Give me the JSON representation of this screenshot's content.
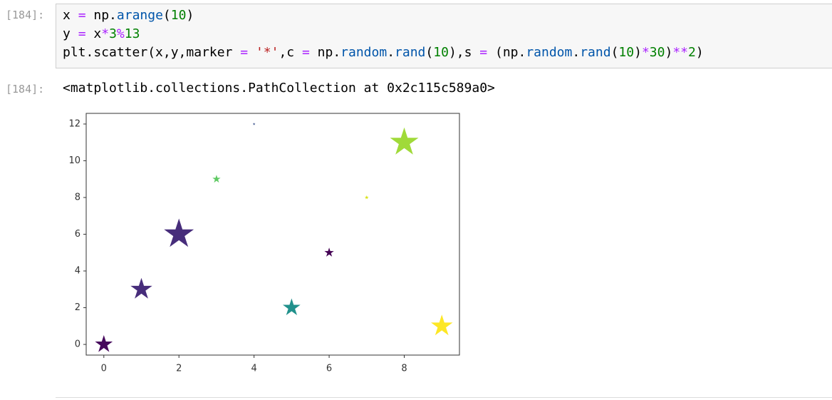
{
  "cells": [
    {
      "prompt": "[184]:",
      "code": {
        "lines": [
          [
            {
              "text": "x ",
              "style": "plain"
            },
            {
              "text": "=",
              "style": "op"
            },
            {
              "text": " np.",
              "style": "plain"
            },
            {
              "text": "arange",
              "style": "func"
            },
            {
              "text": "(",
              "style": "plain"
            },
            {
              "text": "10",
              "style": "num"
            },
            {
              "text": ")",
              "style": "plain"
            }
          ],
          [
            {
              "text": "y ",
              "style": "plain"
            },
            {
              "text": "=",
              "style": "op"
            },
            {
              "text": " x",
              "style": "plain"
            },
            {
              "text": "*",
              "style": "op"
            },
            {
              "text": "3",
              "style": "num"
            },
            {
              "text": "%",
              "style": "op"
            },
            {
              "text": "13",
              "style": "num"
            }
          ],
          [
            {
              "text": "plt.scatter(x,y,marker ",
              "style": "plain"
            },
            {
              "text": "=",
              "style": "op"
            },
            {
              "text": " ",
              "style": "plain"
            },
            {
              "text": "'*'",
              "style": "str"
            },
            {
              "text": ",c ",
              "style": "plain"
            },
            {
              "text": "=",
              "style": "op"
            },
            {
              "text": " np.",
              "style": "plain"
            },
            {
              "text": "random",
              "style": "func"
            },
            {
              "text": ".",
              "style": "plain"
            },
            {
              "text": "rand",
              "style": "func"
            },
            {
              "text": "(",
              "style": "plain"
            },
            {
              "text": "10",
              "style": "num"
            },
            {
              "text": "),s ",
              "style": "plain"
            },
            {
              "text": "=",
              "style": "op"
            },
            {
              "text": " (np.",
              "style": "plain"
            },
            {
              "text": "random",
              "style": "func"
            },
            {
              "text": ".",
              "style": "plain"
            },
            {
              "text": "rand",
              "style": "func"
            },
            {
              "text": "(",
              "style": "plain"
            },
            {
              "text": "10",
              "style": "num"
            },
            {
              "text": ")",
              "style": "plain"
            },
            {
              "text": "*",
              "style": "op"
            },
            {
              "text": "30",
              "style": "num"
            },
            {
              "text": ")",
              "style": "plain"
            },
            {
              "text": "**",
              "style": "op"
            },
            {
              "text": "2",
              "style": "num"
            },
            {
              "text": ")",
              "style": "plain"
            }
          ]
        ]
      },
      "output_prompt": "[184]:",
      "output_text": "<matplotlib.collections.PathCollection at 0x2c115c589a0>"
    }
  ],
  "chart_data": {
    "type": "scatter",
    "marker": "star",
    "x": [
      0,
      1,
      2,
      3,
      4,
      5,
      6,
      7,
      8,
      9
    ],
    "y": [
      0,
      3,
      6,
      9,
      12,
      2,
      5,
      8,
      11,
      1
    ],
    "sizes": [
      676,
      1024,
      1936,
      144,
      16,
      676,
      196,
      36,
      1764,
      1024
    ],
    "colors": [
      "#46085c",
      "#472d7b",
      "#472d7b",
      "#5ec962",
      "#3b528b",
      "#21918c",
      "#440154",
      "#d8e219",
      "#a0da39",
      "#fde725"
    ],
    "xlim": [
      -0.47,
      9.47
    ],
    "ylim": [
      -0.58,
      12.58
    ],
    "xticks": [
      0,
      2,
      4,
      6,
      8
    ],
    "yticks": [
      0,
      2,
      4,
      6,
      8,
      10,
      12
    ],
    "grid": false
  }
}
